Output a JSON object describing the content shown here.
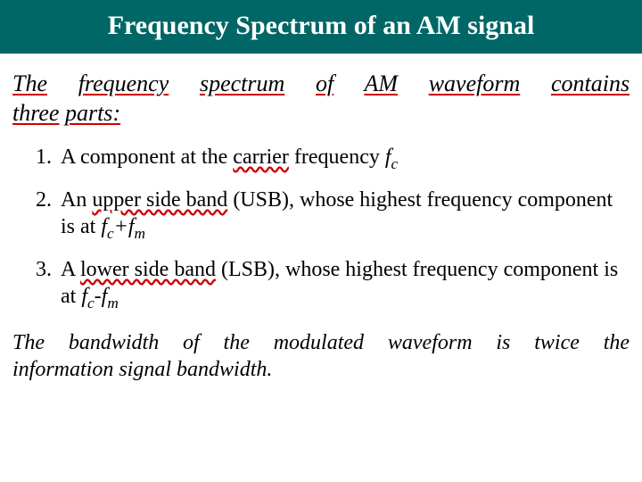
{
  "colors": {
    "title_bg": "#006666",
    "title_text": "#ffffff",
    "body_text": "#000000",
    "underline": "#cc0000",
    "background": "#ffffff"
  },
  "fonts": {
    "family": "Times New Roman",
    "title_size_pt": 30,
    "intro_size_pt": 26,
    "list_size_pt": 24,
    "closing_size_pt": 24,
    "title_weight": "bold",
    "intro_style": "italic",
    "closing_style": "italic"
  },
  "title": "Frequency Spectrum of an AM signal",
  "intro": {
    "words": [
      "The",
      "frequency",
      "spectrum",
      "of",
      "AM",
      "waveform",
      "contains"
    ],
    "second_line_words": [
      "three",
      "parts"
    ],
    "suffix": ":"
  },
  "items": [
    {
      "prefix": "A component at the ",
      "underlined": "carrier",
      "middle": " frequency  ",
      "formula_base": "f",
      "formula_sub": "c",
      "suffix": ""
    },
    {
      "prefix": "An ",
      "underlined": "upper side band",
      "middle": " (USB), whose highest  frequency component is at  ",
      "formula_base1": "f",
      "formula_sub1": "c",
      "formula_op": "+",
      "formula_base2": "f",
      "formula_sub2": "m",
      "suffix": ""
    },
    {
      "prefix": "A ",
      "underlined": "lower side band",
      "middle": " (LSB), whose highest  frequency component is at  ",
      "formula_base1": "f",
      "formula_sub1": "c",
      "formula_op": "-",
      "formula_base2": "f",
      "formula_sub2": "m",
      "suffix": ""
    }
  ],
  "closing_line1_words": [
    "The",
    "bandwidth",
    "of",
    "the",
    "modulated",
    "waveform",
    "is",
    "twice",
    "the"
  ],
  "closing_line2": "information signal bandwidth."
}
